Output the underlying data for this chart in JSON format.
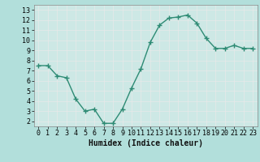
{
  "x": [
    0,
    1,
    2,
    3,
    4,
    5,
    6,
    7,
    8,
    9,
    10,
    11,
    12,
    13,
    14,
    15,
    16,
    17,
    18,
    19,
    20,
    21,
    22,
    23
  ],
  "y": [
    7.5,
    7.5,
    6.5,
    6.3,
    4.2,
    3.0,
    3.2,
    1.8,
    1.8,
    3.2,
    5.3,
    7.2,
    9.8,
    11.5,
    12.2,
    12.3,
    12.5,
    11.7,
    10.2,
    9.2,
    9.2,
    9.5,
    9.2,
    9.2
  ],
  "line_color": "#2e8b74",
  "marker": "+",
  "markersize": 4,
  "linewidth": 1.0,
  "markeredgewidth": 1.0,
  "xlabel": "Humidex (Indice chaleur)",
  "ylabel": "",
  "xlim": [
    -0.5,
    23.5
  ],
  "ylim": [
    1.5,
    13.5
  ],
  "yticks": [
    2,
    3,
    4,
    5,
    6,
    7,
    8,
    9,
    10,
    11,
    12,
    13
  ],
  "xticks": [
    0,
    1,
    2,
    3,
    4,
    5,
    6,
    7,
    8,
    9,
    10,
    11,
    12,
    13,
    14,
    15,
    16,
    17,
    18,
    19,
    20,
    21,
    22,
    23
  ],
  "bg_color": "#b2dfdb",
  "plot_bg_color": "#cde8e5",
  "grid_color": "#e8e8e8",
  "grid_linestyle": "-",
  "grid_linewidth": 0.5,
  "tick_fontsize": 6,
  "xlabel_fontsize": 7,
  "spine_color": "#888888"
}
